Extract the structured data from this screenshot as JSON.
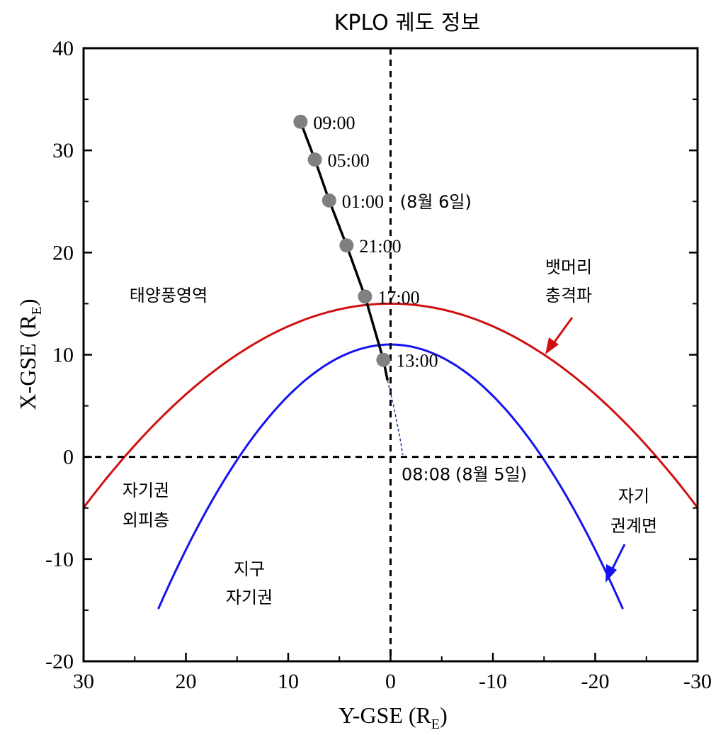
{
  "chart_data": {
    "type": "line",
    "title": "KPLO 궤도 정보",
    "xlabel_main": "Y-GSE (R",
    "xlabel_sub": "E",
    "xlabel_close": ")",
    "ylabel_main": "X-GSE (R",
    "ylabel_sub": "E",
    "ylabel_close": ")",
    "xlim": [
      30,
      -30
    ],
    "ylim": [
      -20,
      40
    ],
    "x_ticks": [
      30,
      20,
      10,
      0,
      -10,
      -20,
      -30
    ],
    "y_ticks": [
      40,
      30,
      20,
      10,
      0,
      -10,
      -20
    ],
    "series": [
      {
        "key": "trajectory",
        "color": "#000000",
        "x": [
          0.3,
          0.7,
          2.5,
          4.3,
          6.0,
          7.4,
          8.8
        ],
        "y": [
          7.5,
          9.5,
          15.7,
          20.7,
          25.1,
          29.1,
          32.8
        ]
      },
      {
        "key": "trajectory-early",
        "color": "#1f3f8f",
        "dashed": true,
        "x": [
          0.3,
          -0.3,
          -0.9,
          -1.2
        ],
        "y": [
          7.5,
          5.0,
          2.0,
          0.2
        ]
      },
      {
        "key": "bow-shock",
        "color": "#d01010",
        "vertex_y": 15.0,
        "x_intercept": 26.0,
        "x_range": [
          30.5,
          -30.5
        ]
      },
      {
        "key": "magnetopause",
        "color": "#1414f0",
        "vertex_y": 11.0,
        "x_intercept": 14.8,
        "x_range": [
          22.7,
          -22.7
        ]
      }
    ],
    "points": [
      {
        "x": 0.7,
        "y": 9.5,
        "label": "13:00"
      },
      {
        "x": 2.5,
        "y": 15.7,
        "label": "17:00"
      },
      {
        "x": 4.3,
        "y": 20.7,
        "label": "21:00"
      },
      {
        "x": 6.0,
        "y": 25.1,
        "label": "01:00",
        "note": "(8월 6일)"
      },
      {
        "x": 7.4,
        "y": 29.1,
        "label": "05:00"
      },
      {
        "x": 8.8,
        "y": 32.8,
        "label": "09:00"
      }
    ],
    "start_label": {
      "label": "08:08",
      "note": "(8월 5일)"
    },
    "region_labels": {
      "solar_wind": "태양풍영역",
      "magnetosheath": [
        "자기권",
        "외피층"
      ],
      "magnetosphere": [
        "지구",
        "자기권"
      ],
      "bow_shock": [
        "뱃머리",
        "충격파"
      ],
      "magnetopause": [
        "자기",
        "권계면"
      ]
    },
    "grid": false,
    "legend": "none"
  }
}
